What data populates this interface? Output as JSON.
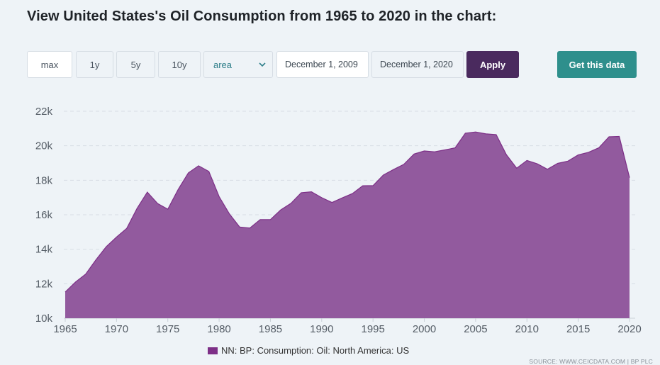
{
  "title": "View United States's Oil Consumption from 1965 to 2020 in the chart:",
  "controls": {
    "range_buttons": [
      "max",
      "1y",
      "5y",
      "10y"
    ],
    "chart_type": "area",
    "start_date": "December 1, 2009",
    "end_date": "December 1, 2020",
    "apply_label": "Apply",
    "get_data_label": "Get this data"
  },
  "colors": {
    "area_fill": "#925a9e",
    "area_stroke": "#7d2f87",
    "apply_bg": "#4a2a5e",
    "get_data_bg": "#2e8f8c"
  },
  "legend": {
    "label": "NN: BP: Consumption: Oil: North America: US"
  },
  "source": "SOURCE: WWW.CEICDATA.COM | BP PLC",
  "chart_data": {
    "type": "area",
    "title": "",
    "xlabel": "",
    "ylabel": "",
    "xlim": [
      1965,
      2020
    ],
    "ylim": [
      10000,
      22000
    ],
    "x_ticks": [
      1965,
      1970,
      1975,
      1980,
      1985,
      1990,
      1995,
      2000,
      2005,
      2010,
      2015,
      2020
    ],
    "y_ticks": [
      10000,
      12000,
      14000,
      16000,
      18000,
      20000,
      22000
    ],
    "y_tick_labels": [
      "10k",
      "12k",
      "14k",
      "16k",
      "18k",
      "20k",
      "22k"
    ],
    "grid": true,
    "series": [
      {
        "name": "NN: BP: Consumption: Oil: North America: US",
        "x": [
          1965,
          1966,
          1967,
          1968,
          1969,
          1970,
          1971,
          1972,
          1973,
          1974,
          1975,
          1976,
          1977,
          1978,
          1979,
          1980,
          1981,
          1982,
          1983,
          1984,
          1985,
          1986,
          1987,
          1988,
          1989,
          1990,
          1991,
          1992,
          1993,
          1994,
          1995,
          1996,
          1997,
          1998,
          1999,
          2000,
          2001,
          2002,
          2003,
          2004,
          2005,
          2006,
          2007,
          2008,
          2009,
          2010,
          2011,
          2012,
          2013,
          2014,
          2015,
          2016,
          2017,
          2018,
          2019,
          2020
        ],
        "values": [
          11520,
          12100,
          12560,
          13390,
          14150,
          14710,
          15210,
          16370,
          17310,
          16650,
          16320,
          17460,
          18430,
          18840,
          18510,
          17050,
          16050,
          15290,
          15230,
          15720,
          15720,
          16280,
          16660,
          17280,
          17330,
          16990,
          16710,
          16980,
          17230,
          17680,
          17690,
          18300,
          18620,
          18920,
          19520,
          19700,
          19650,
          19760,
          19880,
          20730,
          20800,
          20690,
          20650,
          19480,
          18700,
          19150,
          18960,
          18640,
          18980,
          19110,
          19470,
          19620,
          19880,
          20520,
          20540,
          18150
        ]
      }
    ]
  }
}
